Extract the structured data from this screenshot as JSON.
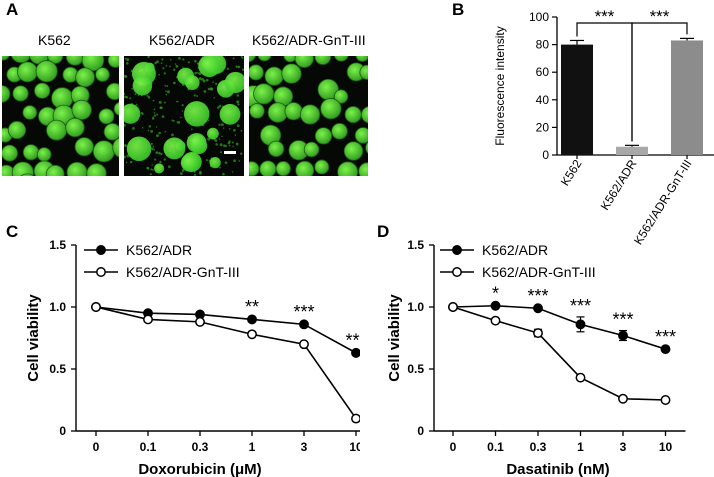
{
  "panels": {
    "a": {
      "letter": "A",
      "images": [
        {
          "label": "K562",
          "variant": "bright"
        },
        {
          "label": "K562/ADR",
          "variant": "dim"
        },
        {
          "label": "K562/ADR-GnT-III",
          "variant": "bright"
        }
      ],
      "colors": {
        "cell": "#2f9a1f",
        "cell_highlight": "#7cf24a",
        "cell_dim": "#36c527",
        "background": "#050805"
      }
    },
    "b": {
      "letter": "B"
    },
    "c": {
      "letter": "C"
    },
    "d": {
      "letter": "D"
    }
  },
  "chart_data": [
    {
      "id": "B",
      "type": "bar",
      "categories": [
        "K562",
        "K562/ADR",
        "K562/ADR-GnT-III"
      ],
      "values": [
        80,
        6,
        83
      ],
      "errors": [
        3,
        1,
        1.5
      ],
      "colors": [
        "#111111",
        "#a8a8a8",
        "#8c8c8c"
      ],
      "ylabel": "Fluorescence intensity",
      "ylim": [
        0,
        100
      ],
      "yticks": [
        0,
        20,
        40,
        60,
        80,
        100
      ],
      "significance": [
        {
          "from": 0,
          "to": 1,
          "label": "***"
        },
        {
          "from": 1,
          "to": 2,
          "label": "***"
        }
      ]
    },
    {
      "id": "C",
      "type": "line",
      "categories": [
        "0",
        "0.1",
        "0.3",
        "1",
        "3",
        "10"
      ],
      "xlabel": "Doxorubicin (μM)",
      "ylabel": "Cell viability",
      "ylim": [
        0,
        1.5
      ],
      "yticks": [
        "0",
        "0.5",
        "1.0",
        "1.5"
      ],
      "series": [
        {
          "name": "K562/ADR",
          "marker": "filled",
          "values": [
            1.0,
            0.95,
            0.94,
            0.9,
            0.86,
            0.63
          ],
          "errors": [
            0,
            0,
            0,
            0.01,
            0.01,
            0.01
          ]
        },
        {
          "name": "K562/ADR-GnT-III",
          "marker": "open",
          "values": [
            1.0,
            0.9,
            0.88,
            0.78,
            0.7,
            0.1
          ],
          "errors": [
            0,
            0.01,
            0.02,
            0.02,
            0.02,
            0.01
          ]
        }
      ],
      "significance": [
        {
          "index": 3,
          "label": "**"
        },
        {
          "index": 4,
          "label": "***"
        },
        {
          "index": 5,
          "label": "***"
        }
      ]
    },
    {
      "id": "D",
      "type": "line",
      "categories": [
        "0",
        "0.1",
        "0.3",
        "1",
        "3",
        "10"
      ],
      "xlabel": "Dasatinib (nM)",
      "ylabel": "Cell viability",
      "ylim": [
        0,
        1.5
      ],
      "yticks": [
        "0",
        "0.5",
        "1.0",
        "1.5"
      ],
      "series": [
        {
          "name": "K562/ADR",
          "marker": "filled",
          "values": [
            1.0,
            1.01,
            0.99,
            0.86,
            0.77,
            0.66
          ],
          "errors": [
            0,
            0.01,
            0.01,
            0.06,
            0.04,
            0.01
          ]
        },
        {
          "name": "K562/ADR-GnT-III",
          "marker": "open",
          "values": [
            1.0,
            0.89,
            0.79,
            0.43,
            0.26,
            0.25
          ],
          "errors": [
            0,
            0.01,
            0.03,
            0.01,
            0.01,
            0.01
          ]
        }
      ],
      "significance": [
        {
          "index": 1,
          "label": "*"
        },
        {
          "index": 2,
          "label": "***"
        },
        {
          "index": 3,
          "label": "***"
        },
        {
          "index": 4,
          "label": "***"
        },
        {
          "index": 5,
          "label": "***"
        }
      ]
    }
  ]
}
